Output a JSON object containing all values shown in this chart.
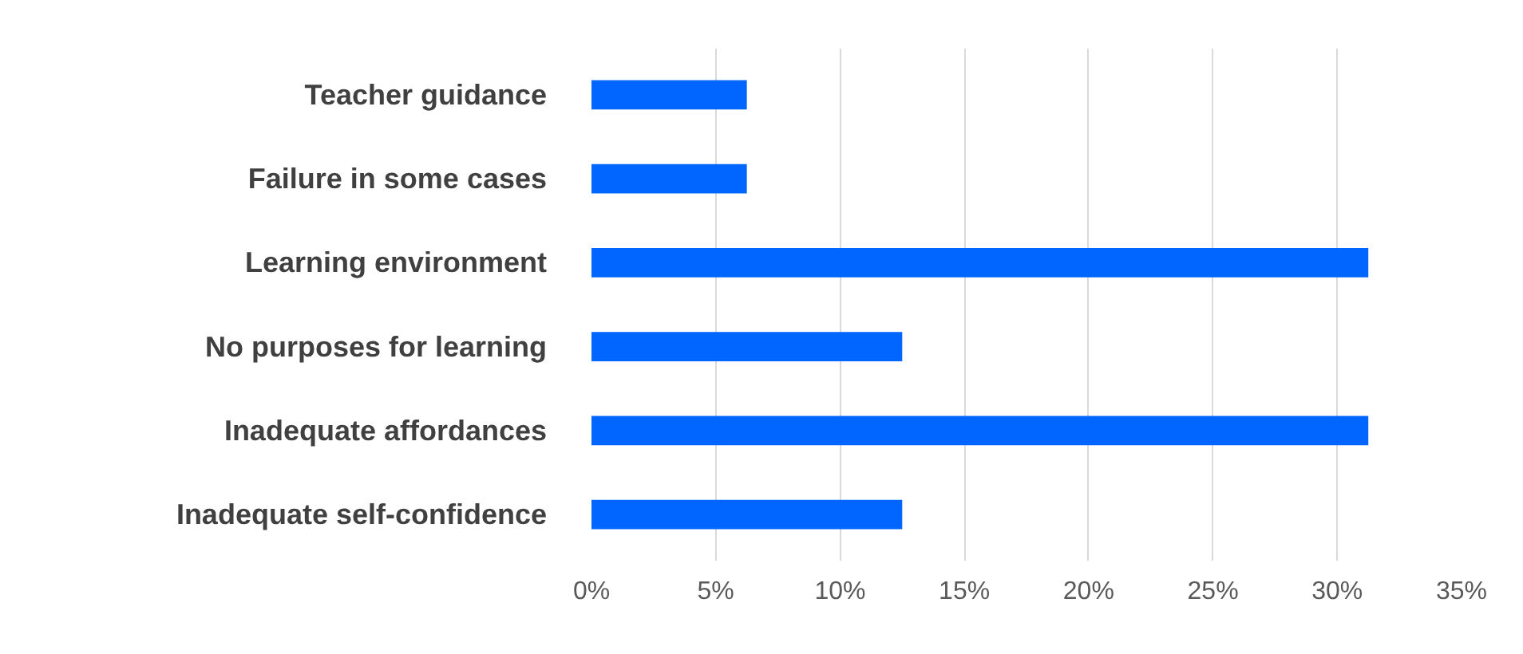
{
  "chart_data": {
    "type": "bar",
    "orientation": "horizontal",
    "categories": [
      "Teacher guidance",
      "Failure in some cases",
      "Learning environment",
      "No purposes for learning",
      "Inadequate affordances",
      "Inadequate self-confidence"
    ],
    "values": [
      6.25,
      6.25,
      31.25,
      12.5,
      31.25,
      12.5
    ],
    "color": "#0066ff",
    "xlim": [
      0,
      35
    ],
    "xticks": [
      {
        "value": 0,
        "label": "0%"
      },
      {
        "value": 5,
        "label": "5%"
      },
      {
        "value": 10,
        "label": "10%"
      },
      {
        "value": 15,
        "label": "15%"
      },
      {
        "value": 20,
        "label": "20%"
      },
      {
        "value": 25,
        "label": "25%"
      },
      {
        "value": 30,
        "label": "30%"
      },
      {
        "value": 35,
        "label": "35%"
      }
    ],
    "grid": "x"
  }
}
